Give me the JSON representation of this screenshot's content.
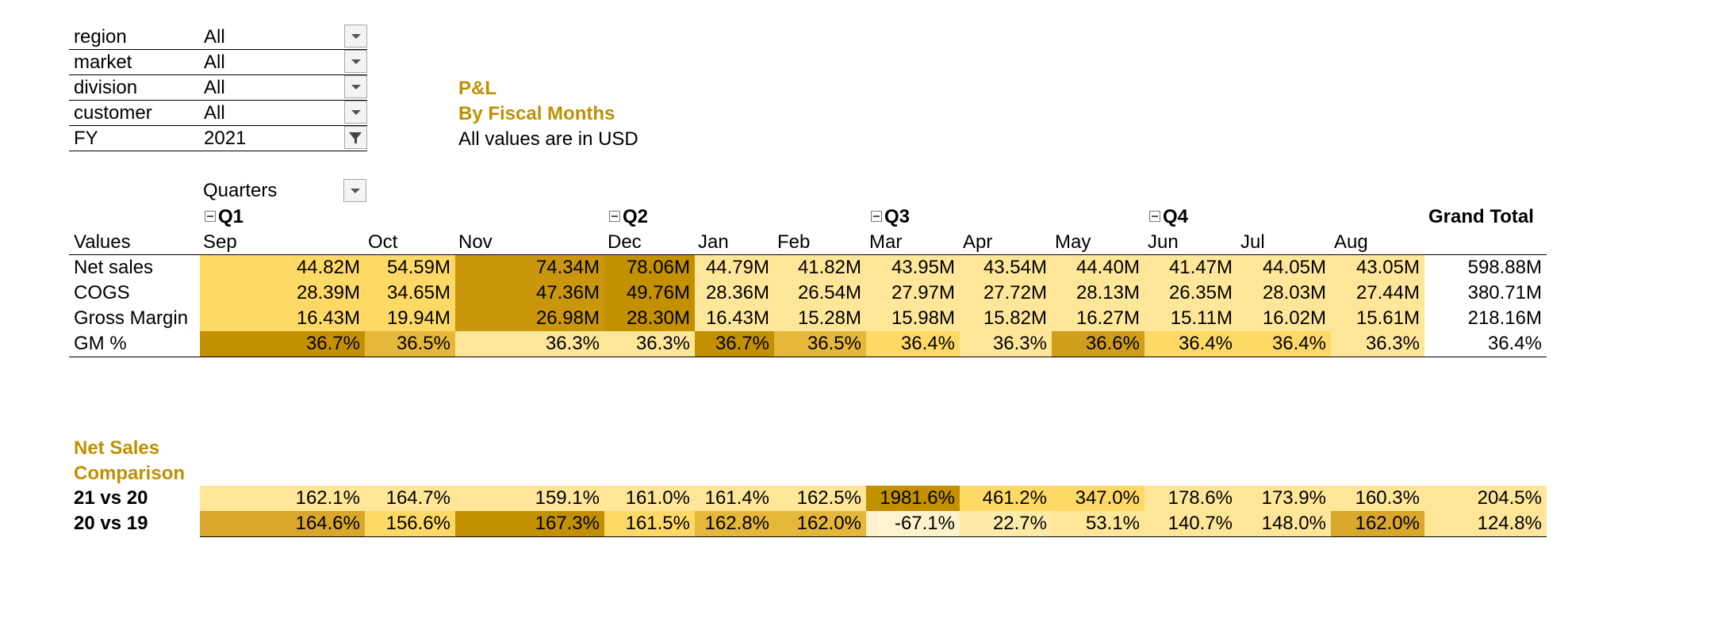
{
  "filters": [
    {
      "label": "region",
      "value": "All",
      "filtered": false
    },
    {
      "label": "market",
      "value": "All",
      "filtered": false
    },
    {
      "label": "division",
      "value": "All",
      "filtered": false
    },
    {
      "label": "customer",
      "value": "All",
      "filtered": false
    },
    {
      "label": "FY",
      "value": "2021",
      "filtered": true
    }
  ],
  "title": {
    "line1": "P&L",
    "line2": "By Fiscal Months",
    "note": "All values are in USD"
  },
  "pivot": {
    "field_button": "Quarters",
    "values_label": "Values",
    "grand_total_label": "Grand Total",
    "quarters": [
      "Q1",
      "Q2",
      "Q3",
      "Q4"
    ],
    "months": [
      "Sep",
      "Oct",
      "Nov",
      "Dec",
      "Jan",
      "Feb",
      "Mar",
      "Apr",
      "May",
      "Jun",
      "Jul",
      "Aug"
    ],
    "rows": [
      {
        "label": "Net sales",
        "values": [
          "44.82M",
          "54.59M",
          "74.34M",
          "78.06M",
          "44.79M",
          "41.82M",
          "43.95M",
          "43.54M",
          "44.40M",
          "41.47M",
          "44.05M",
          "43.05M"
        ],
        "total": "598.88M",
        "colors": [
          "#ffd966",
          "#ffd966",
          "#c9960c",
          "#c39000",
          "#ffe699",
          "#ffe699",
          "#ffe699",
          "#ffe699",
          "#ffe699",
          "#ffe699",
          "#ffe699",
          "#ffe699"
        ]
      },
      {
        "label": "COGS",
        "values": [
          "28.39M",
          "34.65M",
          "47.36M",
          "49.76M",
          "28.36M",
          "26.54M",
          "27.97M",
          "27.72M",
          "28.13M",
          "26.35M",
          "28.03M",
          "27.44M"
        ],
        "total": "380.71M",
        "colors": [
          "#ffd966",
          "#ffd966",
          "#c9960c",
          "#c39000",
          "#ffe699",
          "#ffe699",
          "#ffe699",
          "#ffe699",
          "#ffe699",
          "#ffe699",
          "#ffe699",
          "#ffe699"
        ]
      },
      {
        "label": "Gross Margin",
        "values": [
          "16.43M",
          "19.94M",
          "26.98M",
          "28.30M",
          "16.43M",
          "15.28M",
          "15.98M",
          "15.82M",
          "16.27M",
          "15.11M",
          "16.02M",
          "15.61M"
        ],
        "total": "218.16M",
        "colors": [
          "#ffd966",
          "#ffd966",
          "#c9960c",
          "#c39000",
          "#ffe699",
          "#ffe699",
          "#ffe699",
          "#ffe699",
          "#ffe699",
          "#ffe699",
          "#ffe699",
          "#ffe699"
        ]
      },
      {
        "label": "GM %",
        "values": [
          "36.7%",
          "36.5%",
          "36.3%",
          "36.3%",
          "36.7%",
          "36.5%",
          "36.4%",
          "36.3%",
          "36.6%",
          "36.4%",
          "36.4%",
          "36.3%"
        ],
        "total": "36.4%",
        "colors": [
          "#c39000",
          "#e6b83a",
          "#ffe699",
          "#ffe699",
          "#c39000",
          "#e6b83a",
          "#ffd966",
          "#ffe699",
          "#cf9e1a",
          "#ffd966",
          "#ffd966",
          "#ffe699"
        ]
      }
    ]
  },
  "comparison": {
    "title_line1": "Net Sales",
    "title_line2": "Comparison",
    "rows": [
      {
        "label": "21 vs 20",
        "values": [
          "162.1%",
          "164.7%",
          "159.1%",
          "161.0%",
          "161.4%",
          "162.5%",
          "1981.6%",
          "461.2%",
          "347.0%",
          "178.6%",
          "173.9%",
          "160.3%"
        ],
        "total": "204.5%",
        "colors": [
          "#ffe699",
          "#ffe699",
          "#ffe699",
          "#ffe699",
          "#ffe699",
          "#ffe699",
          "#c39000",
          "#ffd966",
          "#ffd966",
          "#ffe699",
          "#ffe699",
          "#ffe699"
        ],
        "total_color": "#ffe699"
      },
      {
        "label": "20 vs 19",
        "values": [
          "164.6%",
          "156.6%",
          "167.3%",
          "161.5%",
          "162.8%",
          "162.0%",
          "-67.1%",
          "22.7%",
          "53.1%",
          "140.7%",
          "148.0%",
          "162.0%"
        ],
        "total": "124.8%",
        "colors": [
          "#d9a72a",
          "#ffd966",
          "#c39000",
          "#ffd966",
          "#e6b83a",
          "#e6b83a",
          "#fff2cc",
          "#ffeaa8",
          "#ffe699",
          "#ffe699",
          "#ffe699",
          "#d9a72a"
        ],
        "total_color": "#ffe699"
      }
    ]
  }
}
